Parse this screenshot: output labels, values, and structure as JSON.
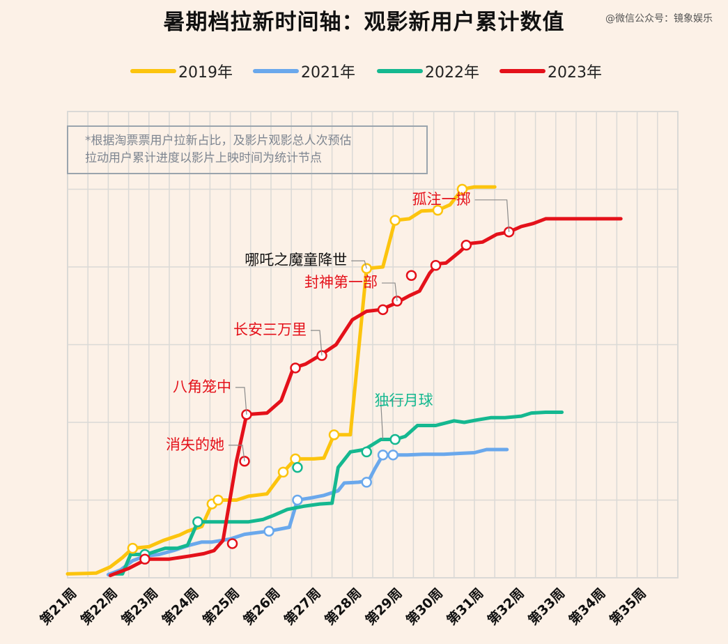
{
  "header": {
    "title": "暑期档拉新时间轴：观影新用户累计数值",
    "watermark": "@微信公众号：镜象娱乐"
  },
  "note": {
    "line1": "*根据淘票票用户拉新占比，及影片观影总人次预估",
    "line2": "拉动用户累计进度以影片上映时间为统计节点"
  },
  "colors": {
    "2019": "#fcc40e",
    "2021": "#6aa8ec",
    "2022": "#15b890",
    "2023": "#e4111a",
    "grid": "#dad9d6",
    "background": "#fcf1e7"
  },
  "chart_data": {
    "type": "line",
    "title": "暑期档拉新时间轴：观影新用户累计数值",
    "legend_position": "top",
    "grid": true,
    "y_tick_labels": false,
    "x_categories": [
      "第21周",
      "第22周",
      "第23周",
      "第24周",
      "第25周",
      "第26周",
      "第27周",
      "第28周",
      "第29周",
      "第30周",
      "第31周",
      "第32周",
      "第33周",
      "第34周",
      "第35周"
    ],
    "xlim": [
      21,
      36
    ],
    "ylim": [
      0,
      6
    ],
    "series": [
      {
        "name": "2019年",
        "color_key": "2019",
        "points": [
          [
            21,
            0.05
          ],
          [
            21.7,
            0.06
          ],
          [
            22.05,
            0.14
          ],
          [
            22.35,
            0.26
          ],
          [
            22.6,
            0.38
          ],
          [
            23,
            0.4
          ],
          [
            23.35,
            0.48
          ],
          [
            23.75,
            0.55
          ],
          [
            23.95,
            0.6
          ],
          [
            24.3,
            0.66
          ],
          [
            24.55,
            0.95
          ],
          [
            24.7,
            1.0
          ],
          [
            24.85,
            1.0
          ],
          [
            25.15,
            1.0
          ],
          [
            25.45,
            1.05
          ],
          [
            25.9,
            1.08
          ],
          [
            26.3,
            1.36
          ],
          [
            26.6,
            1.53
          ],
          [
            27.05,
            1.53
          ],
          [
            27.3,
            1.54
          ],
          [
            27.55,
            1.84
          ],
          [
            27.95,
            1.84
          ],
          [
            28.35,
            3.98
          ],
          [
            28.75,
            4.0
          ],
          [
            29.05,
            4.6
          ],
          [
            29.4,
            4.62
          ],
          [
            29.7,
            4.72
          ],
          [
            30.1,
            4.73
          ],
          [
            30.4,
            4.8
          ],
          [
            30.7,
            5.0
          ],
          [
            31.0,
            5.03
          ],
          [
            31.5,
            5.03
          ]
        ]
      },
      {
        "name": "2021年",
        "color_key": "2021",
        "points": [
          [
            22,
            0.04
          ],
          [
            22.3,
            0.1
          ],
          [
            22.6,
            0.22
          ],
          [
            22.9,
            0.28
          ],
          [
            23.25,
            0.3
          ],
          [
            23.6,
            0.35
          ],
          [
            24.0,
            0.42
          ],
          [
            24.3,
            0.46
          ],
          [
            24.55,
            0.46
          ],
          [
            25.0,
            0.5
          ],
          [
            25.35,
            0.56
          ],
          [
            25.65,
            0.58
          ],
          [
            25.95,
            0.6
          ],
          [
            26.45,
            0.65
          ],
          [
            26.65,
            1.0
          ],
          [
            27.0,
            1.03
          ],
          [
            27.3,
            1.06
          ],
          [
            27.65,
            1.12
          ],
          [
            27.8,
            1.22
          ],
          [
            28.15,
            1.23
          ],
          [
            28.4,
            1.25
          ],
          [
            28.55,
            1.4
          ],
          [
            28.75,
            1.58
          ],
          [
            28.95,
            1.58
          ],
          [
            29.35,
            1.58
          ],
          [
            29.75,
            1.59
          ],
          [
            30.25,
            1.59
          ],
          [
            30.6,
            1.6
          ],
          [
            31.0,
            1.61
          ],
          [
            31.3,
            1.65
          ],
          [
            31.8,
            1.65
          ]
        ]
      },
      {
        "name": "2022年",
        "color_key": "2022",
        "points": [
          [
            22.15,
            0.05
          ],
          [
            22.35,
            0.05
          ],
          [
            22.55,
            0.3
          ],
          [
            22.85,
            0.3
          ],
          [
            23.05,
            0.32
          ],
          [
            23.4,
            0.38
          ],
          [
            23.7,
            0.38
          ],
          [
            23.95,
            0.42
          ],
          [
            24.2,
            0.72
          ],
          [
            24.6,
            0.72
          ],
          [
            25.05,
            0.72
          ],
          [
            25.45,
            0.72
          ],
          [
            25.8,
            0.75
          ],
          [
            26.05,
            0.8
          ],
          [
            26.4,
            0.88
          ],
          [
            26.8,
            0.92
          ],
          [
            27.2,
            0.95
          ],
          [
            27.5,
            0.96
          ],
          [
            27.65,
            1.42
          ],
          [
            27.95,
            1.62
          ],
          [
            28.3,
            1.65
          ],
          [
            28.7,
            1.78
          ],
          [
            29.05,
            1.78
          ],
          [
            29.3,
            1.82
          ],
          [
            29.6,
            1.96
          ],
          [
            30.05,
            1.96
          ],
          [
            30.5,
            2.02
          ],
          [
            30.75,
            2.0
          ],
          [
            31.05,
            2.03
          ],
          [
            31.4,
            2.06
          ],
          [
            31.75,
            2.06
          ],
          [
            32.15,
            2.08
          ],
          [
            32.4,
            2.12
          ],
          [
            32.75,
            2.13
          ],
          [
            33.15,
            2.13
          ]
        ]
      },
      {
        "name": "2023年",
        "color_key": "2023",
        "points": [
          [
            22.05,
            0.03
          ],
          [
            22.5,
            0.12
          ],
          [
            22.95,
            0.24
          ],
          [
            23.5,
            0.24
          ],
          [
            24.0,
            0.28
          ],
          [
            24.35,
            0.31
          ],
          [
            24.6,
            0.35
          ],
          [
            24.82,
            0.48
          ],
          [
            25.15,
            1.5
          ],
          [
            25.4,
            2.1
          ],
          [
            25.9,
            2.12
          ],
          [
            26.25,
            2.28
          ],
          [
            26.55,
            2.7
          ],
          [
            26.85,
            2.75
          ],
          [
            27.2,
            2.86
          ],
          [
            27.6,
            3.0
          ],
          [
            28.0,
            3.32
          ],
          [
            28.35,
            3.43
          ],
          [
            28.7,
            3.45
          ],
          [
            29.05,
            3.53
          ],
          [
            29.4,
            3.63
          ],
          [
            29.65,
            3.69
          ],
          [
            29.9,
            3.92
          ],
          [
            30.1,
            4.04
          ],
          [
            30.3,
            4.05
          ],
          [
            30.65,
            4.2
          ],
          [
            30.85,
            4.3
          ],
          [
            31.2,
            4.32
          ],
          [
            31.55,
            4.42
          ],
          [
            31.85,
            4.45
          ],
          [
            32.15,
            4.52
          ],
          [
            32.45,
            4.56
          ],
          [
            32.75,
            4.62
          ],
          [
            33.1,
            4.62
          ],
          [
            33.55,
            4.62
          ],
          [
            34.05,
            4.62
          ],
          [
            34.6,
            4.62
          ]
        ]
      }
    ],
    "markers": [
      {
        "series": "2019",
        "points": [
          [
            22.6,
            0.38
          ],
          [
            24.55,
            0.95
          ],
          [
            24.7,
            1.0
          ],
          [
            26.3,
            1.36
          ],
          [
            26.6,
            1.53
          ],
          [
            27.55,
            1.84
          ],
          [
            28.35,
            3.98
          ],
          [
            29.05,
            4.6
          ],
          [
            30.1,
            4.73
          ],
          [
            30.7,
            5.0
          ]
        ]
      },
      {
        "series": "2021",
        "points": [
          [
            22.9,
            0.28
          ],
          [
            25.95,
            0.6
          ],
          [
            26.65,
            1.0
          ],
          [
            28.35,
            1.23
          ],
          [
            28.75,
            1.58
          ],
          [
            29.0,
            1.58
          ]
        ]
      },
      {
        "series": "2022",
        "points": [
          [
            22.9,
            0.3
          ],
          [
            24.2,
            0.72
          ],
          [
            26.65,
            1.42
          ],
          [
            28.35,
            1.62
          ],
          [
            29.05,
            1.78
          ]
        ]
      },
      {
        "series": "2023",
        "points": [
          [
            22.9,
            0.24
          ],
          [
            25.05,
            0.44
          ],
          [
            25.35,
            1.5
          ],
          [
            25.4,
            2.1
          ],
          [
            26.6,
            2.7
          ],
          [
            27.25,
            2.86
          ],
          [
            28.75,
            3.45
          ],
          [
            29.1,
            3.56
          ],
          [
            29.45,
            3.89
          ],
          [
            30.05,
            4.02
          ],
          [
            30.8,
            4.28
          ],
          [
            31.85,
            4.45
          ]
        ]
      }
    ],
    "annotations": [
      {
        "text": "孤注一掷",
        "series": "2023",
        "point": [
          31.85,
          4.45
        ]
      },
      {
        "text": "哪吒之魔童降世",
        "series": "2019",
        "point": [
          28.35,
          3.98
        ]
      },
      {
        "text": "封神第一部",
        "series": "2023",
        "point": [
          29.1,
          3.56
        ]
      },
      {
        "text": "长安三万里",
        "series": "2023",
        "point": [
          27.25,
          2.86
        ]
      },
      {
        "text": "八角笼中",
        "series": "2023",
        "point": [
          25.4,
          2.1
        ]
      },
      {
        "text": "消失的她",
        "series": "2023",
        "point": [
          25.35,
          1.5
        ]
      },
      {
        "text": "独行月球",
        "series": "2022",
        "point": [
          28.75,
          1.78
        ]
      }
    ]
  }
}
